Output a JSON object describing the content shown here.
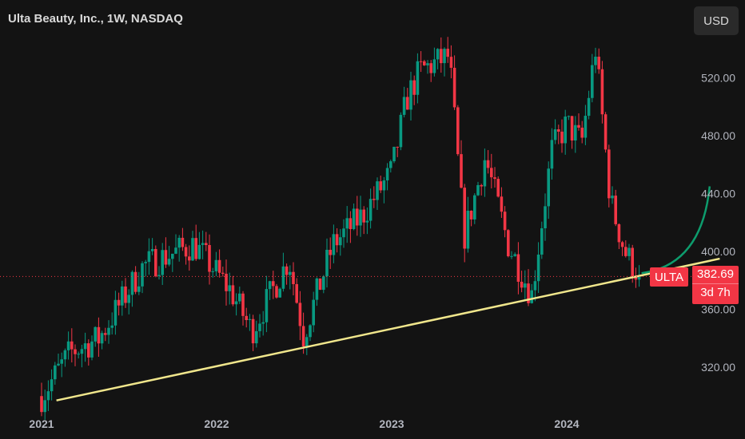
{
  "header": {
    "title": "Ulta Beauty, Inc., 1W, NASDAQ"
  },
  "currency_button": {
    "label": "USD"
  },
  "price_tag": {
    "symbol": "ULTA",
    "value": "382.69",
    "countdown": "3d 7h"
  },
  "colors": {
    "background": "#131313",
    "up_candle": "#089981",
    "down_candle": "#f23645",
    "trendline": "#f0e68c",
    "projection_curve": "#0d9c6d",
    "axis_text": "#b2b5be"
  },
  "chart_data": {
    "type": "candlestick",
    "symbol": "ULTA",
    "timeframe": "1W",
    "exchange": "NASDAQ",
    "x_tick_labels": [
      "2021",
      "2022",
      "2023",
      "2024"
    ],
    "y_tick_labels": [
      "320.00",
      "360.00",
      "400.00",
      "440.00",
      "480.00",
      "520.00"
    ],
    "y_range": [
      300,
      548
    ],
    "x_range": [
      "2021-01-01",
      "2024-12-01"
    ],
    "last_price": 382.69,
    "grid": false,
    "approx_price_path": [
      {
        "date": "2021-01-01",
        "price": 300
      },
      {
        "date": "2021-03-01",
        "price": 330
      },
      {
        "date": "2021-05-01",
        "price": 340
      },
      {
        "date": "2021-08-01",
        "price": 390
      },
      {
        "date": "2021-11-15",
        "price": 405
      },
      {
        "date": "2022-02-01",
        "price": 372
      },
      {
        "date": "2022-03-15",
        "price": 345
      },
      {
        "date": "2022-06-01",
        "price": 395
      },
      {
        "date": "2022-07-01",
        "price": 342
      },
      {
        "date": "2022-09-01",
        "price": 405
      },
      {
        "date": "2022-11-01",
        "price": 425
      },
      {
        "date": "2023-01-01",
        "price": 455
      },
      {
        "date": "2023-02-01",
        "price": 505
      },
      {
        "date": "2023-03-01",
        "price": 525
      },
      {
        "date": "2023-05-01",
        "price": 535
      },
      {
        "date": "2023-06-01",
        "price": 410
      },
      {
        "date": "2023-07-15",
        "price": 465
      },
      {
        "date": "2023-09-01",
        "price": 405
      },
      {
        "date": "2023-10-20",
        "price": 370
      },
      {
        "date": "2023-12-01",
        "price": 470
      },
      {
        "date": "2024-01-01",
        "price": 488
      },
      {
        "date": "2024-02-01",
        "price": 475
      },
      {
        "date": "2024-03-01",
        "price": 540
      },
      {
        "date": "2024-04-01",
        "price": 435
      },
      {
        "date": "2024-05-01",
        "price": 400
      },
      {
        "date": "2024-06-01",
        "price": 382.69
      }
    ],
    "annotations": [
      {
        "type": "trendline",
        "from": {
          "date": "2021-02-01",
          "price": 297
        },
        "to": {
          "date": "2024-11-15",
          "price": 395
        }
      },
      {
        "type": "projection_curve",
        "from": {
          "date": "2024-06-05",
          "price": 385
        },
        "to": {
          "date": "2024-10-25",
          "price": 445
        }
      },
      {
        "type": "horizontal_dotted_line",
        "price": 382.69
      }
    ]
  }
}
